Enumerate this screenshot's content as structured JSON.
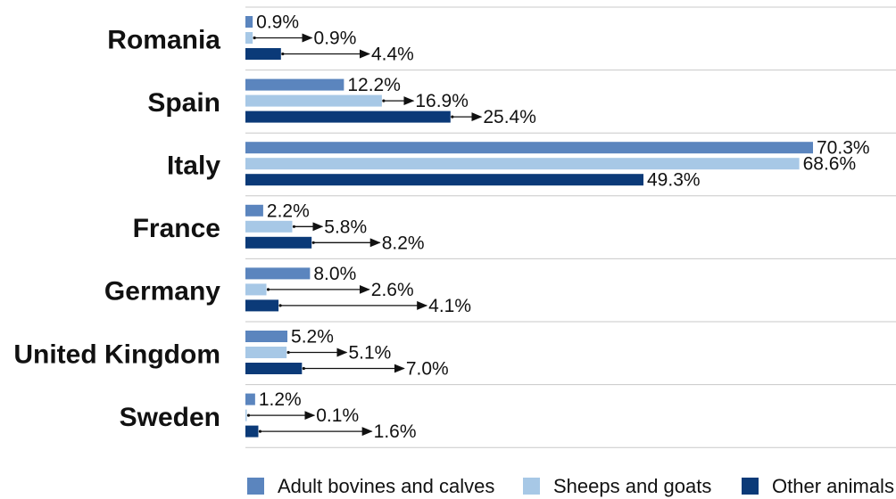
{
  "chart_data": {
    "type": "bar",
    "orientation": "horizontal",
    "categories": [
      "Romania",
      "Spain",
      "Italy",
      "France",
      "Germany",
      "United Kingdom",
      "Sweden"
    ],
    "series": [
      {
        "name": "Adult bovines and calves",
        "color": "#5b85be",
        "values": [
          0.9,
          12.2,
          70.3,
          2.2,
          8.0,
          5.2,
          1.2
        ]
      },
      {
        "name": "Sheeps and goats",
        "color": "#a7c8e6",
        "values": [
          0.9,
          16.9,
          68.6,
          5.8,
          2.6,
          5.1,
          0.1
        ]
      },
      {
        "name": "Other animals",
        "color": "#0b3a78",
        "values": [
          4.4,
          25.4,
          49.3,
          8.2,
          4.1,
          7.0,
          1.6
        ]
      }
    ],
    "value_labels": [
      [
        "0.9%",
        "0.9%",
        "4.4%"
      ],
      [
        "12.2%",
        "16.9%",
        "25.4%"
      ],
      [
        "70.3%",
        "68.6%",
        "49.3%"
      ],
      [
        "2.2%",
        "5.8%",
        "8.2%"
      ],
      [
        "8.0%",
        "2.6%",
        "4.1%"
      ],
      [
        "5.2%",
        "5.1%",
        "7.0%"
      ],
      [
        "1.2%",
        "0.1%",
        "1.6%"
      ]
    ],
    "xlim": [
      0,
      72
    ],
    "legend_position": "bottom",
    "grid": false
  }
}
